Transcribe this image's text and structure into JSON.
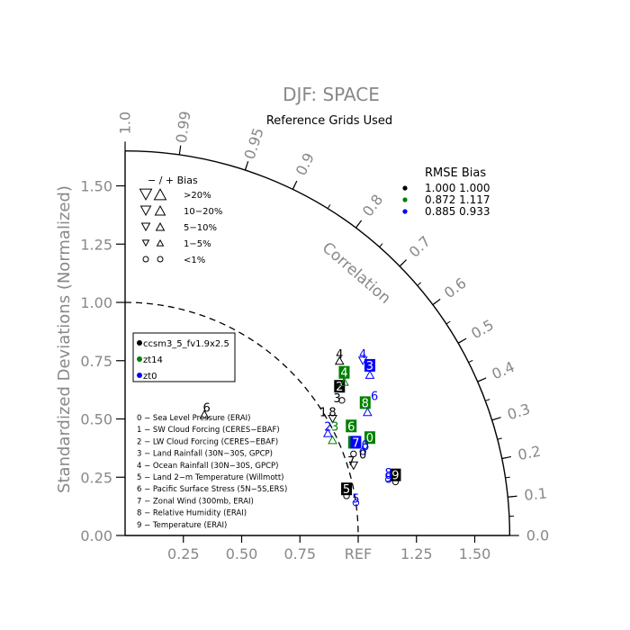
{
  "chart_data": {
    "type": "scatter",
    "title": "DJF: SPACE",
    "subtitle": "Reference Grids Used",
    "ylabel": "Standardized Deviations (Normalized)",
    "xlabel": "",
    "ref_label": "REF",
    "correlation_label": "Correlation",
    "x_ticks": [
      "0.25",
      "0.50",
      "0.75",
      "1.25",
      "1.50"
    ],
    "x_tick_values": [
      0.25,
      0.5,
      0.75,
      1.25,
      1.5
    ],
    "y_ticks": [
      "0.00",
      "0.25",
      "0.50",
      "0.75",
      "1.00",
      "1.25",
      "1.50"
    ],
    "y_tick_values": [
      0,
      0.25,
      0.5,
      0.75,
      1.0,
      1.25,
      1.5
    ],
    "corr_labels": [
      "0.0",
      "0.1",
      "0.2",
      "0.3",
      "0.4",
      "0.5",
      "0.6",
      "0.7",
      "0.8",
      "0.9",
      "0.95",
      "0.99",
      "1.0"
    ],
    "corr_values": [
      0,
      0.1,
      0.2,
      0.3,
      0.4,
      0.5,
      0.6,
      0.7,
      0.8,
      0.9,
      0.95,
      0.99,
      1.0
    ],
    "max_std": 1.65,
    "ref_std": 1.0,
    "bias_legend": {
      "header": "−  /  +      Bias",
      "rows": [
        ">20%",
        "10−20%",
        "5−10%",
        "1−5%",
        "<1%"
      ]
    },
    "rmse_bias_table": {
      "header": "RMSE  Bias",
      "rows": [
        {
          "rmse": "1.000",
          "bias": "1.000",
          "color": "#000000"
        },
        {
          "rmse": "0.872",
          "bias": "1.117",
          "color": "#008000"
        },
        {
          "rmse": "0.885",
          "bias": "0.933",
          "color": "#0000ff"
        }
      ]
    },
    "series": [
      {
        "name": "ccsm3_5_fv1.9x2.5",
        "color": "#000000"
      },
      {
        "name": "zt14",
        "color": "#008000"
      },
      {
        "name": "zt0",
        "color": "#0000ff"
      }
    ],
    "variables": [
      "0 − Sea Level Pressure (ERAI)",
      "1 − SW Cloud Forcing (CERES−EBAF)",
      "2 − LW Cloud Forcing (CERES−EBAF)",
      "3 − Land Rainfall (30N−30S, GPCP)",
      "4 − Ocean Rainfall (30N−30S, GPCP)",
      "5 − Land 2−m Temperature (Willmott)",
      "6 − Pacific Surface Stress (5N−5S,ERS)",
      "7 − Zonal Wind (300mb, ERAI)",
      "8 − Relative Humidity (ERAI)",
      "9 − Temperature (ERAI)"
    ],
    "points": [
      {
        "series": 0,
        "label": "0",
        "x": 1.02,
        "y": 0.35,
        "style": "plain"
      },
      {
        "series": 0,
        "label": "1",
        "x": 0.85,
        "y": 0.53,
        "style": "plain"
      },
      {
        "series": 0,
        "label": "2",
        "x": 0.92,
        "y": 0.64,
        "style": "boxed"
      },
      {
        "series": 0,
        "label": "3",
        "x": 0.91,
        "y": 0.59,
        "style": "plain"
      },
      {
        "series": 0,
        "label": "4",
        "x": 0.92,
        "y": 0.78,
        "style": "plain"
      },
      {
        "series": 0,
        "label": "5",
        "x": 0.95,
        "y": 0.2,
        "style": "boxed"
      },
      {
        "series": 0,
        "label": "6",
        "x": 0.35,
        "y": 0.55,
        "style": "plain"
      },
      {
        "series": 0,
        "label": "7",
        "x": 0.97,
        "y": 0.32,
        "style": "plain"
      },
      {
        "series": 0,
        "label": "8",
        "x": 0.89,
        "y": 0.53,
        "style": "plain"
      },
      {
        "series": 0,
        "label": "9",
        "x": 1.16,
        "y": 0.26,
        "style": "boxed"
      },
      {
        "series": 1,
        "label": "0",
        "x": 1.05,
        "y": 0.42,
        "style": "boxed"
      },
      {
        "series": 1,
        "label": "2",
        "x": 0.93,
        "y": 0.66,
        "style": "plain"
      },
      {
        "series": 1,
        "label": "3",
        "x": 0.9,
        "y": 0.47,
        "style": "plain"
      },
      {
        "series": 1,
        "label": "4",
        "x": 0.94,
        "y": 0.7,
        "style": "boxed"
      },
      {
        "series": 1,
        "label": "6",
        "x": 0.97,
        "y": 0.47,
        "style": "boxed"
      },
      {
        "series": 1,
        "label": "7",
        "x": 0.98,
        "y": 0.4,
        "style": "boxed"
      },
      {
        "series": 1,
        "label": "8",
        "x": 1.03,
        "y": 0.57,
        "style": "boxed"
      },
      {
        "series": 2,
        "label": "0",
        "x": 1.03,
        "y": 0.39,
        "style": "plain"
      },
      {
        "series": 2,
        "label": "2",
        "x": 0.87,
        "y": 0.47,
        "style": "plain"
      },
      {
        "series": 2,
        "label": "3",
        "x": 1.05,
        "y": 0.73,
        "style": "boxed"
      },
      {
        "series": 2,
        "label": "4",
        "x": 1.02,
        "y": 0.78,
        "style": "plain"
      },
      {
        "series": 2,
        "label": "5",
        "x": 0.99,
        "y": 0.16,
        "style": "plain"
      },
      {
        "series": 2,
        "label": "6",
        "x": 1.07,
        "y": 0.6,
        "style": "plain"
      },
      {
        "series": 2,
        "label": "7",
        "x": 0.99,
        "y": 0.4,
        "style": "boxed"
      },
      {
        "series": 2,
        "label": "8",
        "x": 1.13,
        "y": 0.27,
        "style": "plain"
      },
      {
        "series": 2,
        "label": "9",
        "x": 1.13,
        "y": 0.25,
        "style": "plain"
      }
    ],
    "bias_markers": [
      {
        "series": 0,
        "shape": "circle",
        "x": 0.93,
        "y": 0.58
      },
      {
        "series": 0,
        "shape": "circle",
        "x": 0.95,
        "y": 0.17
      },
      {
        "series": 0,
        "shape": "circle",
        "x": 1.16,
        "y": 0.23
      },
      {
        "series": 0,
        "shape": "circle",
        "x": 0.98,
        "y": 0.35
      },
      {
        "series": 0,
        "shape": "up",
        "x": 0.92,
        "y": 0.75
      },
      {
        "series": 0,
        "shape": "up",
        "x": 0.34,
        "y": 0.52
      },
      {
        "series": 0,
        "shape": "down",
        "x": 0.89,
        "y": 0.5
      },
      {
        "series": 0,
        "shape": "down",
        "x": 0.98,
        "y": 0.3
      },
      {
        "series": 1,
        "shape": "up",
        "x": 0.89,
        "y": 0.41
      },
      {
        "series": 1,
        "shape": "up",
        "x": 0.94,
        "y": 0.66
      },
      {
        "series": 2,
        "shape": "circle",
        "x": 1.03,
        "y": 0.38
      },
      {
        "series": 2,
        "shape": "circle",
        "x": 1.02,
        "y": 0.36
      },
      {
        "series": 2,
        "shape": "circle",
        "x": 1.13,
        "y": 0.24
      },
      {
        "series": 2,
        "shape": "circle",
        "x": 0.99,
        "y": 0.14
      },
      {
        "series": 2,
        "shape": "up",
        "x": 0.87,
        "y": 0.44
      },
      {
        "series": 2,
        "shape": "up",
        "x": 1.05,
        "y": 0.69
      },
      {
        "series": 2,
        "shape": "up",
        "x": 1.04,
        "y": 0.53
      },
      {
        "series": 2,
        "shape": "down",
        "x": 1.02,
        "y": 0.75
      }
    ]
  }
}
